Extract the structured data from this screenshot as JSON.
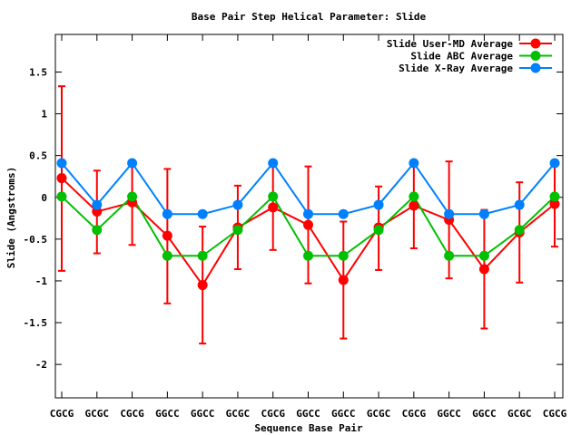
{
  "chart_data": {
    "type": "line",
    "title": "Base Pair Step Helical Parameter: Slide",
    "xlabel": "Sequence Base Pair",
    "ylabel": "Slide (Angstroms)",
    "categories": [
      "CGCG",
      "GCGC",
      "CGCG",
      "GGCC",
      "GGCC",
      "GCGC",
      "CGCG",
      "GGCC",
      "GGCC",
      "GCGC",
      "CGCG",
      "GGCC",
      "GGCC",
      "GCGC",
      "CGCG"
    ],
    "ylim": [
      -2.4,
      1.95
    ],
    "yticks": [
      -2,
      -1.5,
      -1,
      -0.5,
      0,
      0.5,
      1,
      1.5
    ],
    "ytick_labels": [
      "-2",
      "-1.5",
      "-1",
      "-0.5",
      "0",
      "0.5",
      "1",
      "1.5"
    ],
    "grid": false,
    "legend_position": "top-right",
    "series": [
      {
        "name": "Slide User-MD Average",
        "color": "#ff0000",
        "values": [
          0.23,
          -0.17,
          -0.06,
          -0.46,
          -1.05,
          -0.36,
          -0.12,
          -0.33,
          -0.99,
          -0.36,
          -0.1,
          -0.27,
          -0.86,
          -0.42,
          -0.08
        ],
        "err_low": [
          -0.88,
          -0.67,
          -0.57,
          -1.27,
          -1.75,
          -0.86,
          -0.63,
          -1.03,
          -1.69,
          -0.87,
          -0.61,
          -0.97,
          -1.57,
          -1.02,
          -0.59
        ],
        "err_high": [
          1.33,
          0.32,
          0.44,
          0.34,
          -0.35,
          0.14,
          0.4,
          0.37,
          -0.29,
          0.13,
          0.42,
          0.43,
          -0.15,
          0.18,
          0.44
        ]
      },
      {
        "name": "Slide ABC Average",
        "color": "#00c000",
        "values": [
          0.01,
          -0.39,
          0.01,
          -0.7,
          -0.7,
          -0.39,
          0.01,
          -0.7,
          -0.7,
          -0.39,
          0.01,
          -0.7,
          -0.7,
          -0.39,
          0.01
        ]
      },
      {
        "name": "Slide X-Ray Average",
        "color": "#0080ff",
        "values": [
          0.41,
          -0.09,
          0.41,
          -0.2,
          -0.2,
          -0.09,
          0.41,
          -0.2,
          -0.2,
          -0.09,
          0.41,
          -0.2,
          -0.2,
          -0.09,
          0.41
        ]
      }
    ]
  }
}
